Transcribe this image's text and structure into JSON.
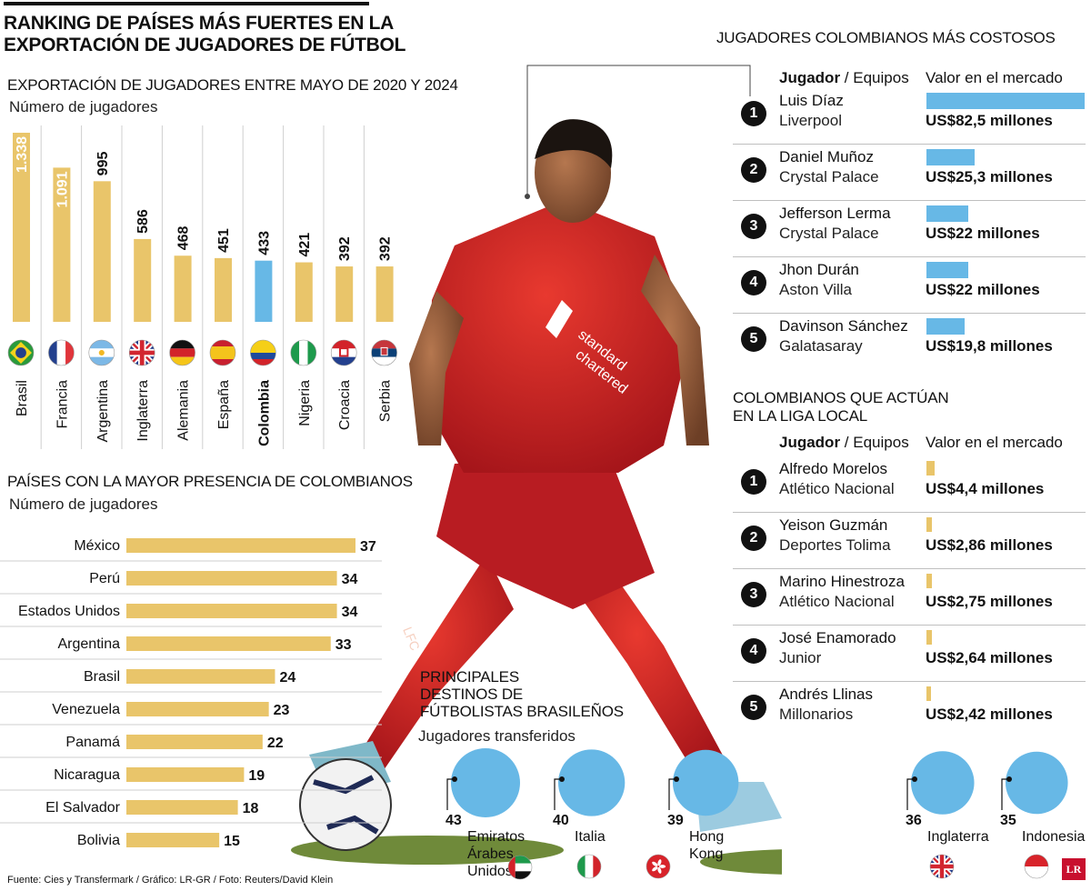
{
  "title": "RANKING DE PAÍSES MÁS FUERTES EN LA EXPORTACIÓN DE JUGADORES DE FÚTBOL",
  "title_lines": [
    "RANKING DE PAÍSES MÁS FUERTES EN LA",
    "EXPORTACIÓN DE JUGADORES DE FÚTBOL"
  ],
  "colors": {
    "yellow": "#e9c56a",
    "blue": "#67b8e6",
    "black": "#111111"
  },
  "export_chart": {
    "heading": "EXPORTACIÓN DE JUGADORES ENTRE MAYO DE 2020 Y 2024",
    "unit": "Número de jugadores"
  },
  "presence_chart": {
    "heading": "PAÍSES CON LA MAYOR PRESENCIA DE COLOMBIANOS",
    "unit": "Número de jugadores"
  },
  "brazil_chart": {
    "heading_lines": [
      "PRINCIPALES",
      "DESTINOS DE",
      "FÚTBOLISTAS BRASILEÑOS"
    ],
    "unit": "Jugadores transferidos"
  },
  "chart_data": [
    {
      "type": "bar",
      "orientation": "vertical",
      "title": "EXPORTACIÓN DE JUGADORES ENTRE MAYO DE 2020 Y 2024",
      "ylabel": "Número de jugadores",
      "categories": [
        "Brasil",
        "Francia",
        "Argentina",
        "Inglaterra",
        "Alemania",
        "España",
        "Colombia",
        "Nigeria",
        "Croacia",
        "Serbia"
      ],
      "values": [
        1338,
        1091,
        995,
        586,
        468,
        451,
        433,
        421,
        392,
        392
      ],
      "labels": [
        "1.338",
        "1.091",
        "995",
        "586",
        "468",
        "451",
        "433",
        "421",
        "392",
        "392"
      ],
      "highlight": "Colombia",
      "flags": [
        "brazil-flag",
        "france-flag",
        "argentina-flag",
        "uk-flag",
        "germany-flag",
        "spain-flag",
        "colombia-flag",
        "nigeria-flag",
        "croatia-flag",
        "serbia-flag"
      ]
    },
    {
      "type": "bar",
      "orientation": "horizontal",
      "title": "PAÍSES CON LA MAYOR PRESENCIA DE COLOMBIANOS",
      "xlabel": "Número de jugadores",
      "categories": [
        "México",
        "Perú",
        "Estados Unidos",
        "Argentina",
        "Brasil",
        "Venezuela",
        "Panamá",
        "Nicaragua",
        "El Salvador",
        "Bolivia"
      ],
      "values": [
        37,
        34,
        34,
        33,
        24,
        23,
        22,
        19,
        18,
        15
      ]
    },
    {
      "type": "bubble",
      "title": "PRINCIPALES DESTINOS DE FÚTBOLISTAS BRASILEÑOS",
      "ylabel": "Jugadores transferidos",
      "categories": [
        "Emiratos Árabes Unidos",
        "Italia",
        "Hong Kong",
        "Inglaterra",
        "Indonesia"
      ],
      "category_lines": [
        [
          "Emiratos",
          "Árabes",
          "Unidos"
        ],
        [
          "Italia"
        ],
        [
          "Hong",
          "Kong"
        ],
        [
          "Inglaterra"
        ],
        [
          "Indonesia"
        ]
      ],
      "values": [
        43,
        40,
        39,
        36,
        35
      ],
      "flags": [
        "uae-flag",
        "italy-flag",
        "hongkong-flag",
        "uk-flag",
        "indonesia-flag"
      ]
    },
    {
      "type": "bar",
      "orientation": "horizontal",
      "title": "JUGADORES COLOMBIANOS MÁS COSTOSOS",
      "series_unit": "US$ millones",
      "categories": [
        "Luis Díaz",
        "Daniel Muñoz",
        "Jefferson Lerma",
        "Jhon Durán",
        "Davinson Sánchez"
      ],
      "values": [
        82.5,
        25.3,
        22,
        22,
        19.8
      ]
    },
    {
      "type": "bar",
      "orientation": "horizontal",
      "title": "COLOMBIANOS QUE ACTÚAN EN LA LIGA LOCAL",
      "series_unit": "US$ millones",
      "categories": [
        "Alfredo Morelos",
        "Yeison Guzmán",
        "Marino Hinestroza",
        "José Enamorado",
        "Andrés Llinas"
      ],
      "values": [
        4.4,
        2.86,
        2.75,
        2.64,
        2.42
      ]
    }
  ],
  "costly": {
    "heading": "JUGADORES COLOMBIANOS MÁS COSTOSOS",
    "col_player": "Jugador",
    "col_sep": "/",
    "col_team": "Equipos",
    "col_value": "Valor en el mercado",
    "rows": [
      {
        "rank": "1",
        "name": "Luis Díaz",
        "team": "Liverpool",
        "value": "US$82,5 millones"
      },
      {
        "rank": "2",
        "name": "Daniel Muñoz",
        "team": "Crystal Palace",
        "value": "US$25,3 millones"
      },
      {
        "rank": "3",
        "name": "Jefferson Lerma",
        "team": "Crystal Palace",
        "value": "US$22 millones"
      },
      {
        "rank": "4",
        "name": "Jhon Durán",
        "team": "Aston Villa",
        "value": "US$22 millones"
      },
      {
        "rank": "5",
        "name": "Davinson Sánchez",
        "team": "Galatasaray",
        "value": "US$19,8 millones"
      }
    ]
  },
  "local": {
    "heading_lines": [
      "COLOMBIANOS QUE ACTÚAN",
      "EN LA LIGA LOCAL"
    ],
    "col_player": "Jugador",
    "col_sep": "/",
    "col_team": "Equipos",
    "col_value": "Valor en el mercado",
    "rows": [
      {
        "rank": "1",
        "name": "Alfredo Morelos",
        "team": "Atlético Nacional",
        "value": "US$4,4 millones"
      },
      {
        "rank": "2",
        "name": "Yeison Guzmán",
        "team": "Deportes Tolima",
        "value": "US$2,86 millones"
      },
      {
        "rank": "3",
        "name": "Marino Hinestroza",
        "team": "Atlético Nacional",
        "value": "US$2,75 millones"
      },
      {
        "rank": "4",
        "name": "José Enamorado",
        "team": "Junior",
        "value": "US$2,64 millones"
      },
      {
        "rank": "5",
        "name": "Andrés Llinas",
        "team": "Millonarios",
        "value": "US$2,42 millones"
      }
    ]
  },
  "photo": {
    "shirt_text": "LFC"
  },
  "footer": "Fuente: Cies y Transfermark / Gráfico: LR-GR / Foto: Reuters/David Klein",
  "logo": "LR"
}
